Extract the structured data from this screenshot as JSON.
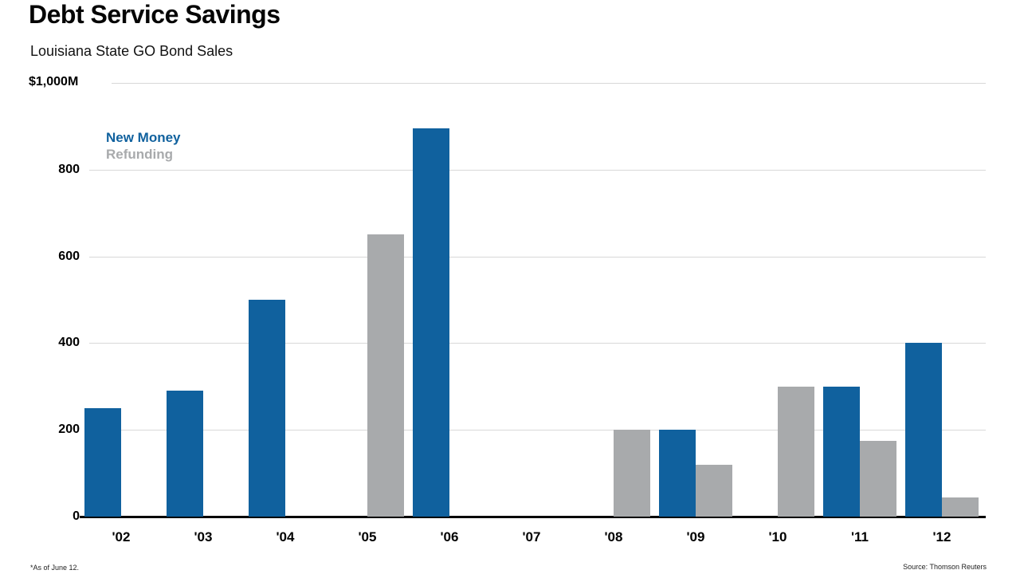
{
  "header": {
    "title": "Debt Service Savings",
    "subtitle": "Louisiana State GO Bond Sales"
  },
  "footer": {
    "footnote": "*As of June 12.",
    "source": "Source: Thomson Reuters"
  },
  "colors": {
    "new_money": "#10619e",
    "refunding": "#a8aaac",
    "gridline": "#d8d8d8",
    "axis": "#000000"
  },
  "chart_data": {
    "type": "bar",
    "title": "Debt Service Savings",
    "subtitle": "Louisiana State GO Bond Sales",
    "categories": [
      "'02",
      "'03",
      "'04",
      "'05",
      "'06",
      "'07",
      "'08",
      "'09",
      "'10",
      "'11",
      "'12"
    ],
    "series": [
      {
        "name": "New Money",
        "color": "#10619e",
        "values": [
          250,
          290,
          500,
          0,
          895,
          0,
          0,
          200,
          0,
          300,
          400
        ]
      },
      {
        "name": "Refunding",
        "color": "#a8aaac",
        "values": [
          0,
          0,
          0,
          650,
          0,
          0,
          200,
          120,
          300,
          175,
          45
        ]
      }
    ],
    "xlabel": "",
    "ylabel": "",
    "ylim": [
      0,
      1000
    ],
    "ytick_values": [
      0,
      200,
      400,
      600,
      800,
      1000
    ],
    "ytick_labels": [
      "0",
      "200",
      "400",
      "600",
      "800",
      "$1,000M"
    ],
    "grid": true,
    "legend_position": "top-left",
    "unit": "millions of dollars"
  }
}
